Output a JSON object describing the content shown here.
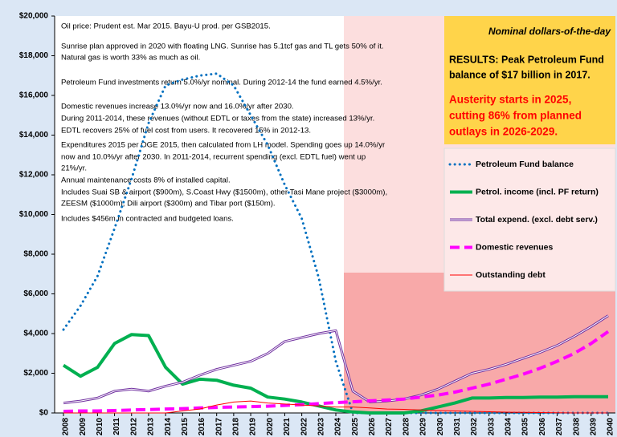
{
  "chart_data": {
    "type": "line",
    "categories": [
      "2008",
      "2009",
      "2010",
      "2011",
      "2012",
      "2013",
      "2014",
      "2015",
      "2016",
      "2017",
      "2018",
      "2019",
      "2020",
      "2021",
      "2022",
      "2023",
      "2024",
      "2025",
      "2026",
      "2027",
      "2028",
      "2029",
      "2030",
      "2031",
      "2032",
      "2033",
      "2034",
      "2035",
      "2036",
      "2037",
      "2038",
      "2039",
      "2040"
    ],
    "ylim": [
      0,
      20000
    ],
    "yticks": [
      {
        "value": 0,
        "label": "$0"
      },
      {
        "value": 2000,
        "label": "$2,000"
      },
      {
        "value": 4000,
        "label": "$4,000"
      },
      {
        "value": 6000,
        "label": "$6,000"
      },
      {
        "value": 8000,
        "label": "$8,000"
      },
      {
        "value": 10000,
        "label": "$10,000"
      },
      {
        "value": 12000,
        "label": "$12,000"
      },
      {
        "value": 14000,
        "label": "$14,000"
      },
      {
        "value": 16000,
        "label": "$16,000"
      },
      {
        "value": 18000,
        "label": "$18,000"
      },
      {
        "value": 20000,
        "label": "$20,000"
      }
    ],
    "notes": [
      "Oil price: Prudent est. Mar 2015.   Bayu-U prod. per GSB2015.",
      "Sunrise plan approved in 2020 with floating LNG. Sunrise has 5.1tcf gas and TL gets 50% of it.",
      "Natural gas is worth 33% as much as oil.",
      "Petroleum Fund investments return 5.0%/yr nominal.    During 2012-14 the fund earned 4.5%/yr.",
      "Domestic revenues increase 13.0%/yr now and 16.0%/yr after 2030.",
      "During 2011-2014, these revenues (without EDTL or taxes from the state) increased 13%/yr.",
      "EDTL recovers 25% of fuel cost from users. It recovered 15% in 2012-13.",
      "Expenditures 2015 per OGE 2015, then calculated from LH model. Spending goes up 14.0%/yr",
      "now and 10.0%/yr after 2030. In 2011-2014, recurrent spending (excl. EDTL fuel) went up",
      "21%/yr.",
      "Annual maintenance costs 8% of installed capital.",
      "Includes Suai SB & airport ($900m), S.Coast Hwy ($1500m),  other Tasi Mane project ($3000m),",
      "ZEESM ($1000m),  Dili airport ($300m) and Tibar port ($150m).",
      "Includes $456m in contracted and budgeted loans."
    ],
    "subtitle": "Nominal dollars-of-the-day",
    "results": [
      "RESULTS: Peak Petroleum Fund",
      "balance of $17 billion in 2017."
    ],
    "austerity": [
      "Austerity starts in 2025,",
      "cutting 86% from planned",
      "outlays in 2026-2029."
    ],
    "series": [
      {
        "name": "Petroleum Fund balance",
        "color": "#0070c0",
        "style": "dotted",
        "width": 3,
        "values": [
          4200,
          5400,
          6900,
          9300,
          11800,
          14600,
          16500,
          16800,
          17000,
          17100,
          16500,
          15000,
          13500,
          11500,
          9800,
          6800,
          2600,
          0,
          0,
          0,
          0,
          0,
          0,
          0,
          0,
          0,
          0,
          0,
          0,
          0,
          0,
          0,
          0
        ]
      },
      {
        "name": "Petrol. income (incl. PF return)",
        "color": "#00b050",
        "style": "solid",
        "width": 4,
        "values": [
          2400,
          1850,
          2300,
          3500,
          3950,
          3900,
          2300,
          1450,
          1700,
          1650,
          1400,
          1250,
          800,
          700,
          550,
          350,
          150,
          50,
          0,
          0,
          0,
          100,
          300,
          500,
          750,
          750,
          780,
          780,
          800,
          800,
          820,
          820,
          820
        ]
      },
      {
        "name": "Total expend. (excl. debt serv.)",
        "color": "#7030a0",
        "style": "double",
        "width": 3,
        "values": [
          500,
          600,
          750,
          1100,
          1200,
          1100,
          1350,
          1550,
          1900,
          2200,
          2400,
          2600,
          3000,
          3600,
          3800,
          4000,
          4150,
          1100,
          550,
          600,
          700,
          900,
          1200,
          1600,
          2000,
          2200,
          2450,
          2750,
          3050,
          3400,
          3850,
          4350,
          4900
        ]
      },
      {
        "name": "Domestic revenues",
        "color": "#ff00ff",
        "style": "dashed",
        "width": 4,
        "values": [
          80,
          100,
          100,
          120,
          150,
          170,
          200,
          220,
          250,
          280,
          300,
          320,
          340,
          380,
          420,
          470,
          520,
          560,
          610,
          650,
          700,
          800,
          900,
          1050,
          1250,
          1450,
          1700,
          1950,
          2250,
          2600,
          3000,
          3500,
          4100
        ]
      },
      {
        "name": "Outstanding debt",
        "color": "#ff0000",
        "style": "solid",
        "width": 1,
        "values": [
          0,
          0,
          0,
          0,
          0,
          0,
          0,
          100,
          200,
          400,
          550,
          600,
          500,
          450,
          400,
          350,
          300,
          300,
          250,
          200,
          180,
          150,
          120,
          100,
          80,
          60,
          40,
          30,
          20,
          10,
          0,
          0,
          0
        ]
      }
    ]
  }
}
